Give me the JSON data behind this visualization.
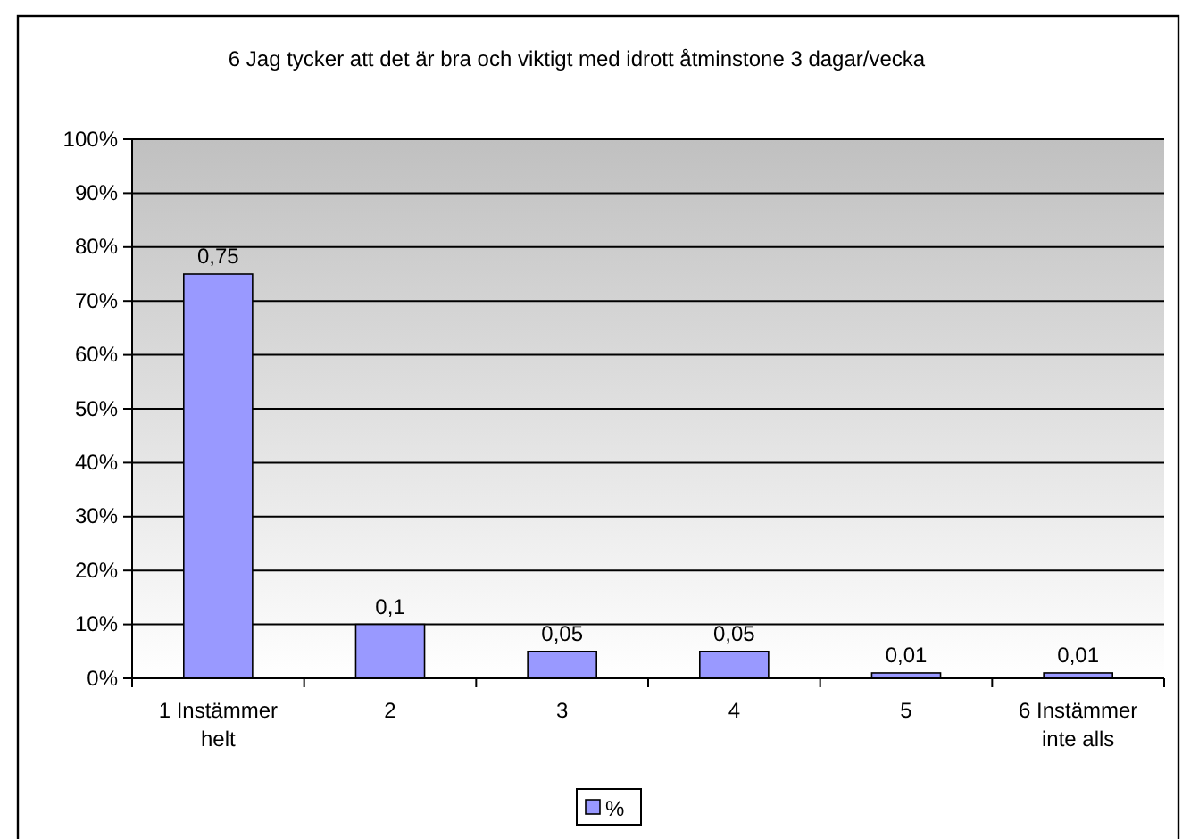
{
  "chart_data": {
    "type": "bar",
    "title": "6 Jag tycker att det är bra och viktigt med idrott åtminstone 3 dagar/vecka",
    "categories": [
      "1 Instämmer helt",
      "2",
      "3",
      "4",
      "5",
      "6 Instämmer inte alls"
    ],
    "series": [
      {
        "name": "%",
        "color": "#9999ff",
        "values": [
          0.75,
          0.1,
          0.05,
          0.05,
          0.01,
          0.01
        ]
      }
    ],
    "value_labels": [
      "0,75",
      "0,1",
      "0,05",
      "0,05",
      "0,01",
      "0,01"
    ],
    "ylim": [
      0,
      1
    ],
    "yticks": [
      {
        "value": 0,
        "label": "0%"
      },
      {
        "value": 0.1,
        "label": "10%"
      },
      {
        "value": 0.2,
        "label": "20%"
      },
      {
        "value": 0.3,
        "label": "30%"
      },
      {
        "value": 0.4,
        "label": "40%"
      },
      {
        "value": 0.5,
        "label": "50%"
      },
      {
        "value": 0.6,
        "label": "60%"
      },
      {
        "value": 0.7,
        "label": "70%"
      },
      {
        "value": 0.8,
        "label": "80%"
      },
      {
        "value": 0.9,
        "label": "90%"
      },
      {
        "value": 1,
        "label": "100%"
      }
    ],
    "grid": "y",
    "legend": "bottom"
  }
}
